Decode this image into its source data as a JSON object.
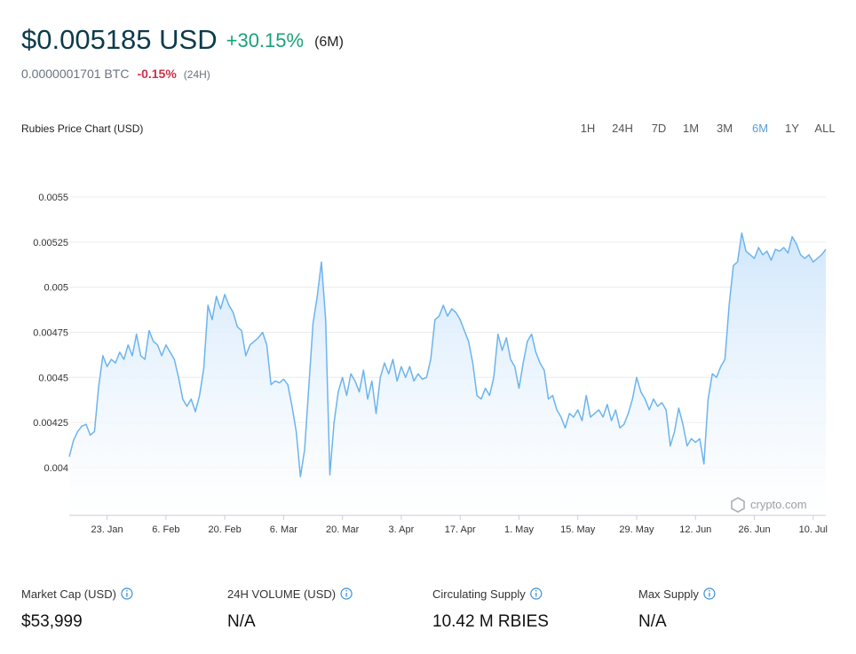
{
  "header": {
    "price": "$0.005185 USD",
    "change": "+30.15%",
    "period": "(6M)",
    "btc_price": "0.0000001701 BTC",
    "btc_change": "-0.15%",
    "btc_period": "(24H)"
  },
  "chart_data": {
    "type": "area",
    "title": "Rubies Price Chart (USD)",
    "ranges": [
      "1H",
      "24H",
      "7D",
      "1M",
      "3M",
      "6M",
      "1Y",
      "ALL"
    ],
    "selected_range": 5,
    "watermark": "crypto.com",
    "color": "#6cb4ee",
    "grid": true,
    "ylim": [
      0.003735,
      0.005605
    ],
    "yticks": [
      0.004,
      0.00425,
      0.0045,
      0.00475,
      0.005,
      0.00525,
      0.0055
    ],
    "categories": [
      null,
      null,
      null,
      null,
      null,
      null,
      null,
      null,
      null,
      "23. Jan",
      null,
      null,
      null,
      null,
      null,
      null,
      null,
      null,
      null,
      null,
      null,
      null,
      null,
      "6. Feb",
      null,
      null,
      null,
      null,
      null,
      null,
      null,
      null,
      null,
      null,
      null,
      null,
      null,
      "20. Feb",
      null,
      null,
      null,
      null,
      null,
      null,
      null,
      null,
      null,
      null,
      null,
      null,
      null,
      "6. Mar",
      null,
      null,
      null,
      null,
      null,
      null,
      null,
      null,
      null,
      null,
      null,
      null,
      null,
      "20. Mar",
      null,
      null,
      null,
      null,
      null,
      null,
      null,
      null,
      null,
      null,
      null,
      null,
      null,
      "3. Apr",
      null,
      null,
      null,
      null,
      null,
      null,
      null,
      null,
      null,
      null,
      null,
      null,
      null,
      "17. Apr",
      null,
      null,
      null,
      null,
      null,
      null,
      null,
      null,
      null,
      null,
      null,
      null,
      null,
      "1. May",
      null,
      null,
      null,
      null,
      null,
      null,
      null,
      null,
      null,
      null,
      null,
      null,
      null,
      "15. May",
      null,
      null,
      null,
      null,
      null,
      null,
      null,
      null,
      null,
      null,
      null,
      null,
      null,
      "29. May",
      null,
      null,
      null,
      null,
      null,
      null,
      null,
      null,
      null,
      null,
      null,
      null,
      null,
      "12. Jun",
      null,
      null,
      null,
      null,
      null,
      null,
      null,
      null,
      null,
      null,
      null,
      null,
      null,
      "26. Jun",
      null,
      null,
      null,
      null,
      null,
      null,
      null,
      null,
      null,
      null,
      null,
      null,
      null,
      "10. Jul",
      null,
      null,
      null
    ],
    "values": [
      0.00406,
      0.00415,
      0.0042,
      0.00423,
      0.00424,
      0.00418,
      0.0042,
      0.00445,
      0.00462,
      0.00456,
      0.0046,
      0.00458,
      0.00464,
      0.0046,
      0.00468,
      0.00462,
      0.00474,
      0.00462,
      0.0046,
      0.00476,
      0.0047,
      0.00468,
      0.00462,
      0.00468,
      0.00464,
      0.0046,
      0.0045,
      0.00438,
      0.00434,
      0.00438,
      0.00431,
      0.0044,
      0.00455,
      0.0049,
      0.00482,
      0.00495,
      0.00488,
      0.00496,
      0.0049,
      0.00486,
      0.00478,
      0.00476,
      0.00462,
      0.00468,
      0.0047,
      0.00472,
      0.00475,
      0.00468,
      0.00446,
      0.00448,
      0.00447,
      0.00449,
      0.00446,
      0.00434,
      0.0042,
      0.00395,
      0.0041,
      0.00445,
      0.0048,
      0.00495,
      0.00514,
      0.00482,
      0.00396,
      0.00425,
      0.00442,
      0.0045,
      0.0044,
      0.00452,
      0.00448,
      0.00442,
      0.00454,
      0.00438,
      0.00448,
      0.0043,
      0.0045,
      0.00458,
      0.00452,
      0.0046,
      0.00448,
      0.00456,
      0.0045,
      0.00456,
      0.00448,
      0.00452,
      0.00449,
      0.0045,
      0.0046,
      0.00482,
      0.00484,
      0.0049,
      0.00484,
      0.00488,
      0.00486,
      0.00482,
      0.00476,
      0.0047,
      0.00458,
      0.0044,
      0.00438,
      0.00444,
      0.0044,
      0.0045,
      0.00474,
      0.00465,
      0.00472,
      0.0046,
      0.00456,
      0.00444,
      0.00458,
      0.0047,
      0.00474,
      0.00464,
      0.00458,
      0.00454,
      0.00438,
      0.0044,
      0.00432,
      0.00428,
      0.00422,
      0.0043,
      0.00428,
      0.00432,
      0.00426,
      0.0044,
      0.00428,
      0.0043,
      0.00432,
      0.00428,
      0.00435,
      0.00426,
      0.00432,
      0.00422,
      0.00424,
      0.0043,
      0.00438,
      0.0045,
      0.00442,
      0.00438,
      0.00432,
      0.00438,
      0.00434,
      0.00436,
      0.00432,
      0.00412,
      0.0042,
      0.00433,
      0.00424,
      0.00412,
      0.00416,
      0.00414,
      0.00416,
      0.00402,
      0.00438,
      0.00452,
      0.0045,
      0.00456,
      0.0046,
      0.0049,
      0.00512,
      0.00514,
      0.0053,
      0.0052,
      0.00518,
      0.00516,
      0.00522,
      0.00518,
      0.0052,
      0.00515,
      0.00521,
      0.0052,
      0.00522,
      0.00519,
      0.00528,
      0.00524,
      0.00518,
      0.00516,
      0.00518,
      0.00514,
      0.00516,
      0.00518,
      0.00521
    ]
  },
  "stats": [
    {
      "label": "Market Cap (USD)",
      "value": "$53,999"
    },
    {
      "label": "24H VOLUME (USD)",
      "value": "N/A"
    },
    {
      "label": "Circulating Supply",
      "value": "10.42 M RBIES"
    },
    {
      "label": "Max Supply",
      "value": "N/A"
    }
  ]
}
